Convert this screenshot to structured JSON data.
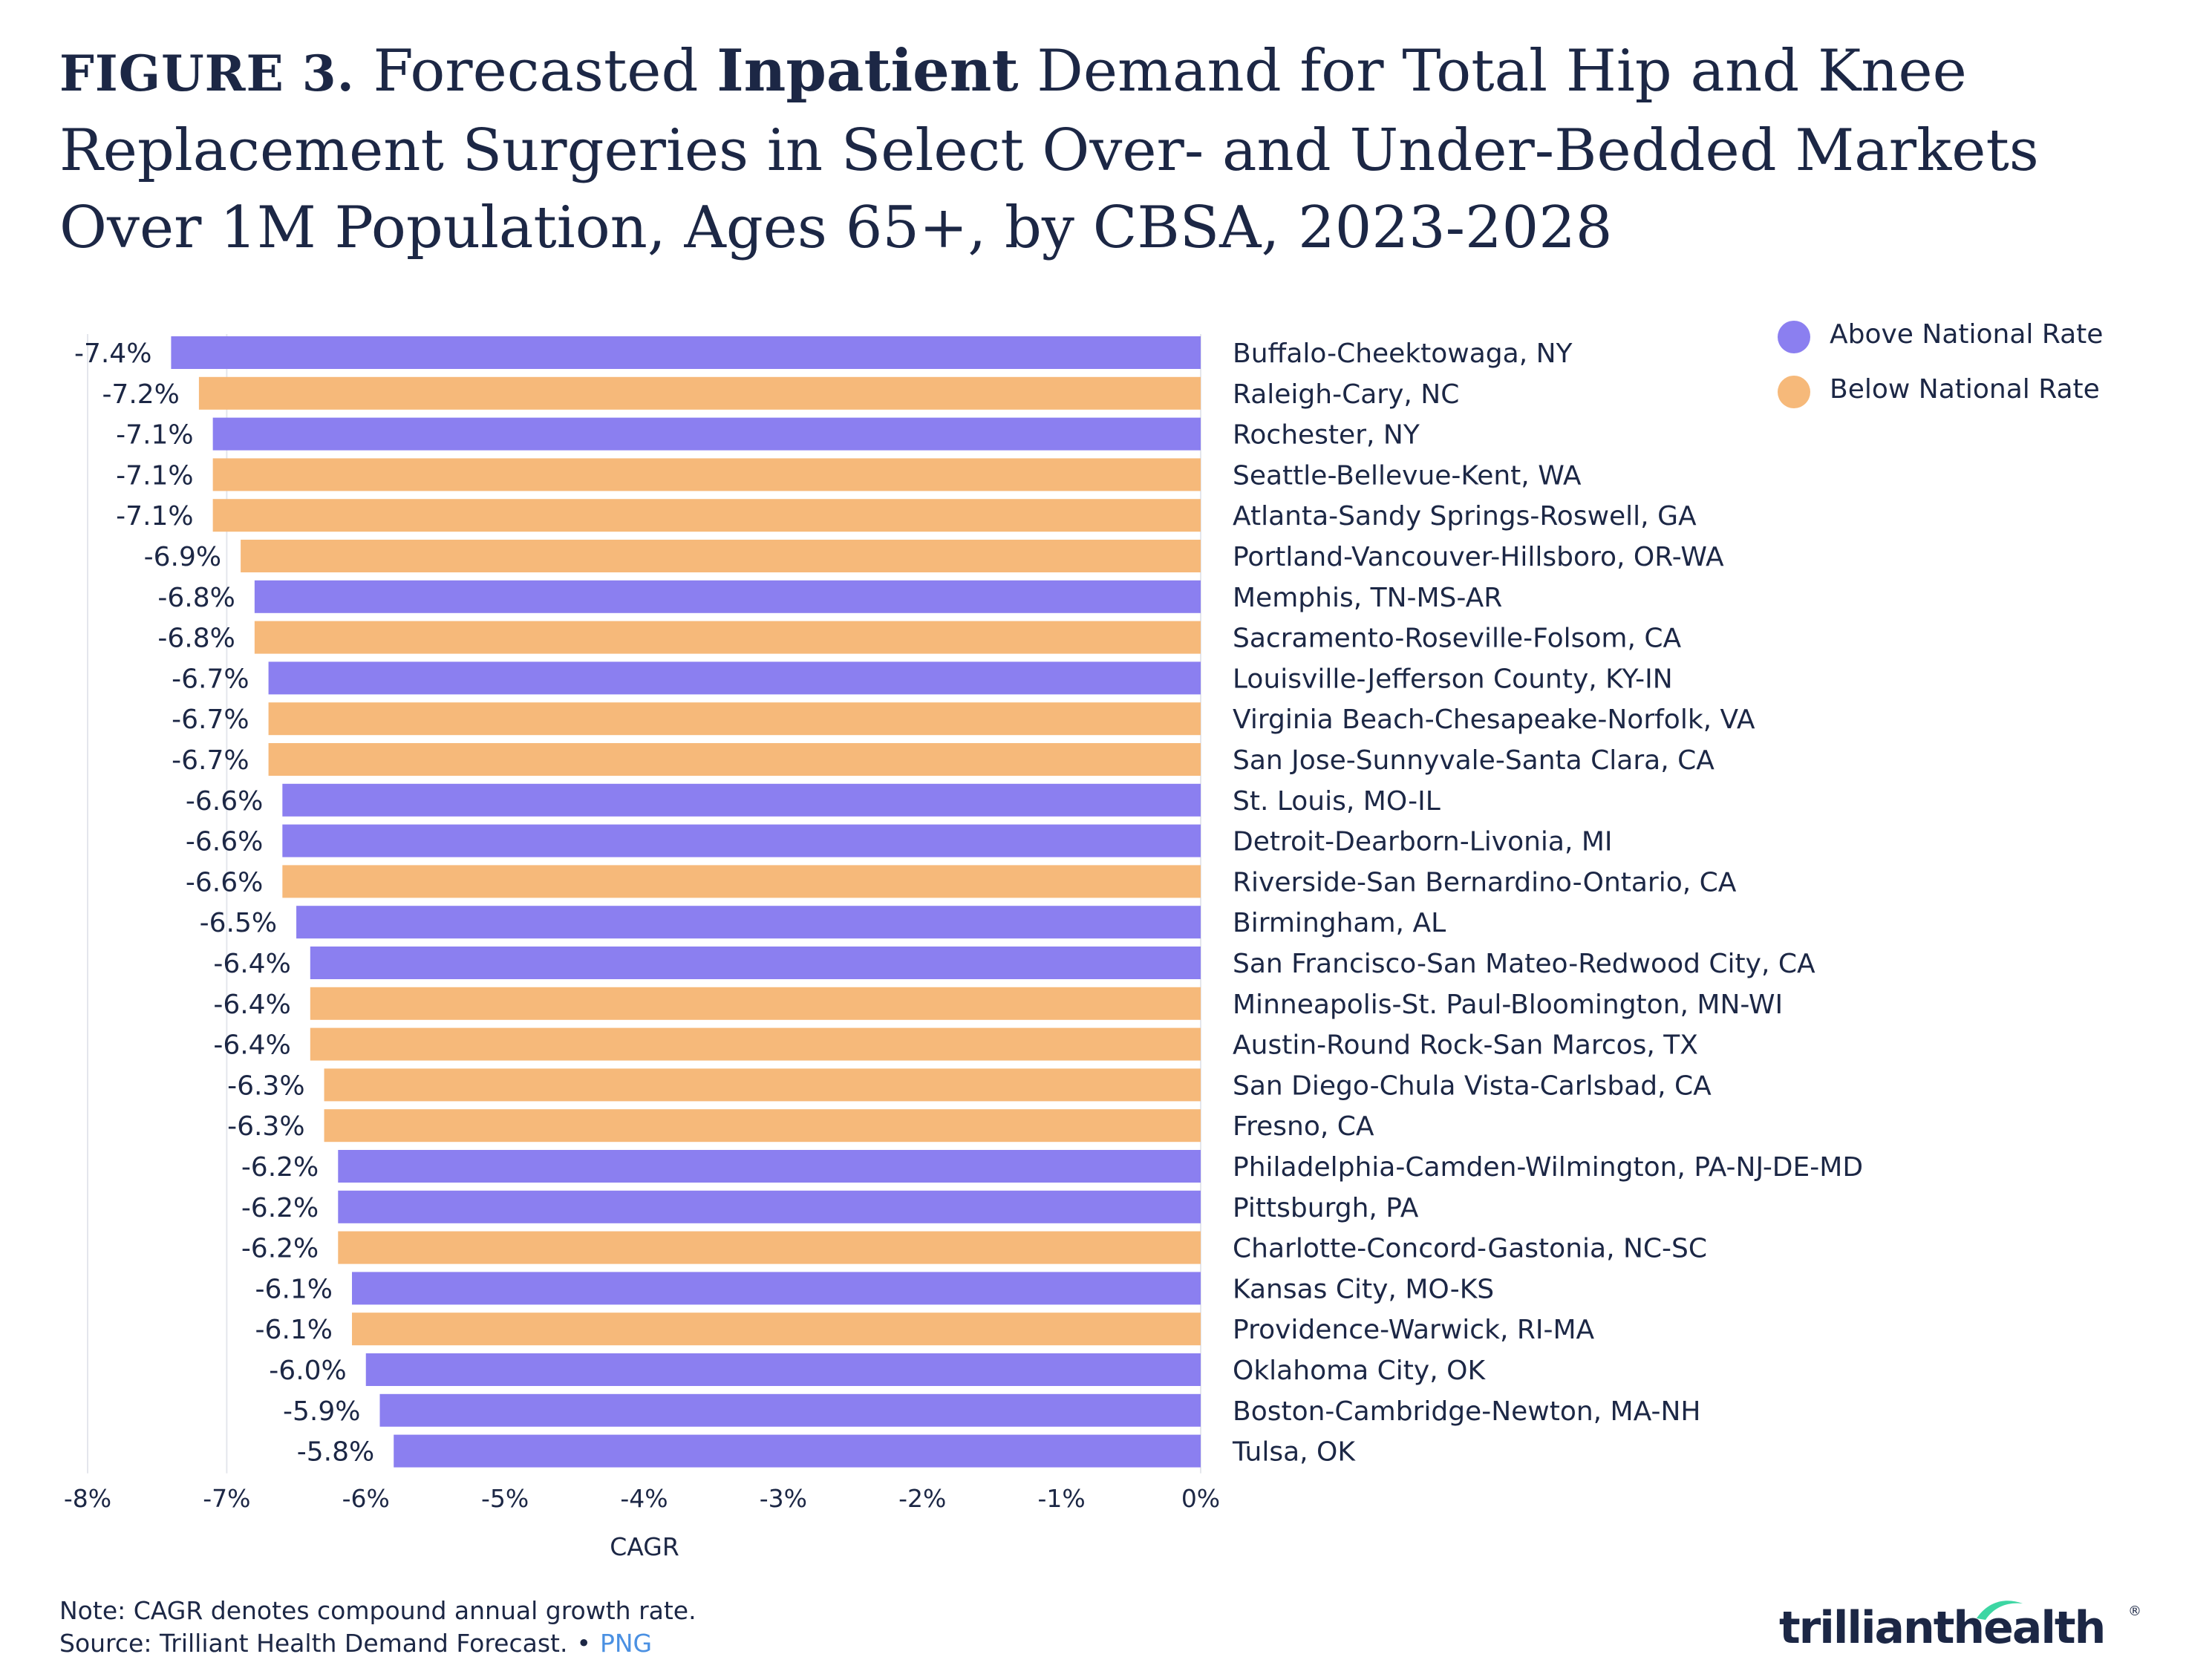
{
  "title": {
    "figure_label": "FIGURE 3.",
    "part1": " Forecasted ",
    "emphasis": "Inpatient",
    "part2": " Demand for Total Hip and Knee Replacement Surgeries in Select Over- and Under-Bedded Markets Over 1M Population, Ages 65+, by CBSA, 2023-2028"
  },
  "legend": [
    {
      "label": "Above National Rate",
      "color": "#8b7ff0"
    },
    {
      "label": "Below National Rate",
      "color": "#f6b97a"
    }
  ],
  "chart_data": {
    "type": "bar",
    "orientation": "horizontal",
    "xlabel": "CAGR",
    "xlim": [
      -8,
      0
    ],
    "xticks": [
      "-8%",
      "-7%",
      "-6%",
      "-5%",
      "-4%",
      "-3%",
      "-2%",
      "-1%",
      "0%"
    ],
    "colors": {
      "above": "#8b7ff0",
      "below": "#f6b97a"
    },
    "bars": [
      {
        "category": "Buffalo-Cheektowaga, NY",
        "value": -7.4,
        "label": "-7.4%",
        "group": "above"
      },
      {
        "category": "Raleigh-Cary, NC",
        "value": -7.2,
        "label": "-7.2%",
        "group": "below"
      },
      {
        "category": "Rochester, NY",
        "value": -7.1,
        "label": "-7.1%",
        "group": "above"
      },
      {
        "category": "Seattle-Bellevue-Kent, WA",
        "value": -7.1,
        "label": "-7.1%",
        "group": "below"
      },
      {
        "category": "Atlanta-Sandy Springs-Roswell, GA",
        "value": -7.1,
        "label": "-7.1%",
        "group": "below"
      },
      {
        "category": "Portland-Vancouver-Hillsboro, OR-WA",
        "value": -6.9,
        "label": "-6.9%",
        "group": "below"
      },
      {
        "category": "Memphis, TN-MS-AR",
        "value": -6.8,
        "label": "-6.8%",
        "group": "above"
      },
      {
        "category": "Sacramento-Roseville-Folsom, CA",
        "value": -6.8,
        "label": "-6.8%",
        "group": "below"
      },
      {
        "category": "Louisville-Jefferson County, KY-IN",
        "value": -6.7,
        "label": "-6.7%",
        "group": "above"
      },
      {
        "category": "Virginia Beach-Chesapeake-Norfolk, VA",
        "value": -6.7,
        "label": "-6.7%",
        "group": "below"
      },
      {
        "category": "San Jose-Sunnyvale-Santa Clara, CA",
        "value": -6.7,
        "label": "-6.7%",
        "group": "below"
      },
      {
        "category": "St. Louis, MO-IL",
        "value": -6.6,
        "label": "-6.6%",
        "group": "above"
      },
      {
        "category": "Detroit-Dearborn-Livonia, MI",
        "value": -6.6,
        "label": "-6.6%",
        "group": "above"
      },
      {
        "category": "Riverside-San Bernardino-Ontario, CA",
        "value": -6.6,
        "label": "-6.6%",
        "group": "below"
      },
      {
        "category": "Birmingham, AL",
        "value": -6.5,
        "label": "-6.5%",
        "group": "above"
      },
      {
        "category": "San Francisco-San Mateo-Redwood City, CA",
        "value": -6.4,
        "label": "-6.4%",
        "group": "above"
      },
      {
        "category": "Minneapolis-St. Paul-Bloomington, MN-WI",
        "value": -6.4,
        "label": "-6.4%",
        "group": "below"
      },
      {
        "category": "Austin-Round Rock-San Marcos, TX",
        "value": -6.4,
        "label": "-6.4%",
        "group": "below"
      },
      {
        "category": "San Diego-Chula Vista-Carlsbad, CA",
        "value": -6.3,
        "label": "-6.3%",
        "group": "below"
      },
      {
        "category": "Fresno, CA",
        "value": -6.3,
        "label": "-6.3%",
        "group": "below"
      },
      {
        "category": "Philadelphia-Camden-Wilmington, PA-NJ-DE-MD",
        "value": -6.2,
        "label": "-6.2%",
        "group": "above"
      },
      {
        "category": "Pittsburgh, PA",
        "value": -6.2,
        "label": "-6.2%",
        "group": "above"
      },
      {
        "category": "Charlotte-Concord-Gastonia, NC-SC",
        "value": -6.2,
        "label": "-6.2%",
        "group": "below"
      },
      {
        "category": "Kansas City, MO-KS",
        "value": -6.1,
        "label": "-6.1%",
        "group": "above"
      },
      {
        "category": "Providence-Warwick, RI-MA",
        "value": -6.1,
        "label": "-6.1%",
        "group": "below"
      },
      {
        "category": "Oklahoma City, OK",
        "value": -6.0,
        "label": "-6.0%",
        "group": "above"
      },
      {
        "category": "Boston-Cambridge-Newton, MA-NH",
        "value": -5.9,
        "label": "-5.9%",
        "group": "above"
      },
      {
        "category": "Tulsa, OK",
        "value": -5.8,
        "label": "-5.8%",
        "group": "above"
      }
    ]
  },
  "footer": {
    "note": "Note: CAGR denotes compound annual growth rate.",
    "source": "Source: Trilliant Health Demand Forecast.",
    "separator": "•",
    "png_link": "PNG"
  },
  "logo": {
    "text": "trillianthealth",
    "registered": "®"
  }
}
